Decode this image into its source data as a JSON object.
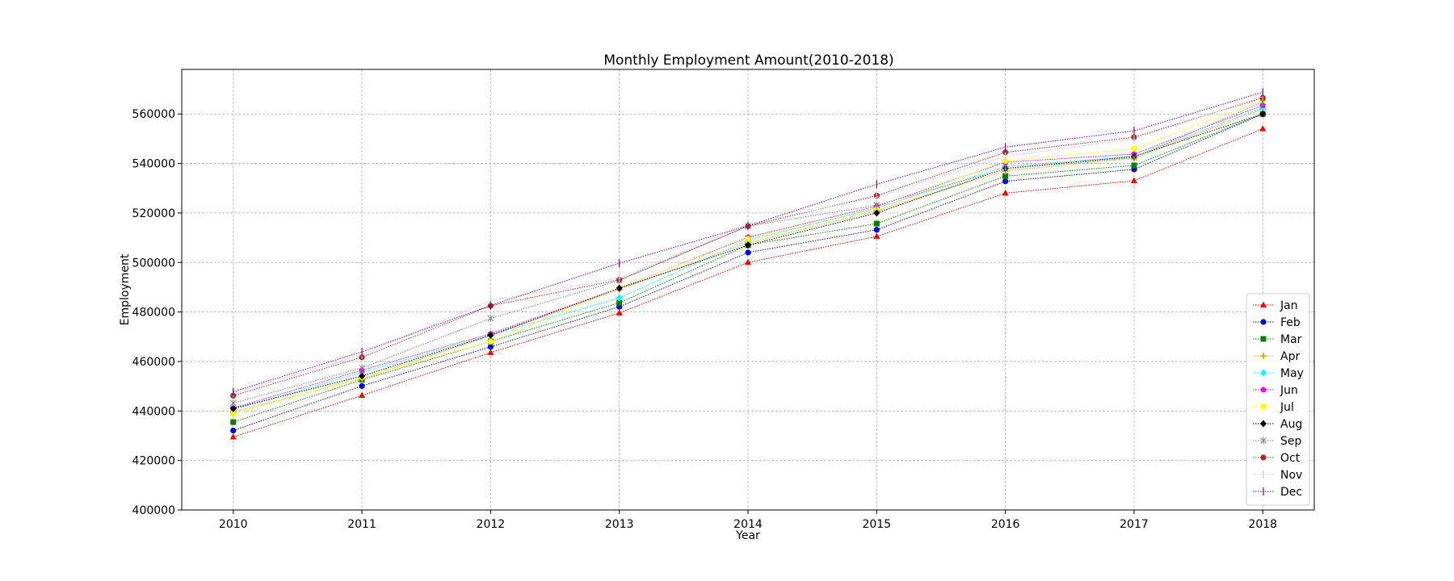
{
  "chart_data": {
    "type": "line",
    "title": "Monthly Employment Amount(2010-2018)",
    "xlabel": "Year",
    "ylabel": "Employment",
    "x": [
      2010,
      2011,
      2012,
      2013,
      2014,
      2015,
      2016,
      2017,
      2018
    ],
    "xlim": [
      2009.6,
      2018.4
    ],
    "ylim": [
      400000,
      578000
    ],
    "yticks": [
      400000,
      420000,
      440000,
      460000,
      480000,
      500000,
      520000,
      540000,
      560000
    ],
    "grid": true,
    "legend_position": "lower-right",
    "series": [
      {
        "name": "Jan",
        "color": "#ff0000",
        "marker": "triangle",
        "values": [
          429500,
          446300,
          463600,
          479600,
          500000,
          510500,
          528000,
          533000,
          554000
        ]
      },
      {
        "name": "Feb",
        "color": "#0000ff",
        "marker": "circle",
        "values": [
          432100,
          450100,
          465900,
          482100,
          504000,
          513200,
          532800,
          537600,
          560000
        ]
      },
      {
        "name": "Mar",
        "color": "#008000",
        "marker": "square",
        "values": [
          435500,
          452600,
          468100,
          483700,
          507000,
          515700,
          534900,
          539200,
          560000
        ]
      },
      {
        "name": "Apr",
        "color": "#ffa500",
        "marker": "plus",
        "values": [
          439600,
          453000,
          470400,
          489100,
          507900,
          520900,
          537000,
          542100,
          562000
        ]
      },
      {
        "name": "May",
        "color": "#00ffff",
        "marker": "diamond",
        "values": [
          440500,
          455500,
          470700,
          485700,
          509000,
          522000,
          538800,
          542900,
          562500
        ]
      },
      {
        "name": "Jun",
        "color": "#ff00ff",
        "marker": "pentagon",
        "values": [
          441200,
          456500,
          471200,
          489600,
          510200,
          522700,
          540500,
          543800,
          563500
        ]
      },
      {
        "name": "Jul",
        "color": "#ffff00",
        "marker": "circle",
        "values": [
          438800,
          453600,
          468000,
          489900,
          509600,
          521500,
          541000,
          546000,
          565500
        ]
      },
      {
        "name": "Aug",
        "color": "#000000",
        "marker": "diamond",
        "values": [
          441000,
          454100,
          470600,
          489600,
          507000,
          520000,
          538000,
          542800,
          560000
        ]
      },
      {
        "name": "Sep",
        "color": "#808080",
        "marker": "x",
        "values": [
          443200,
          457400,
          477400,
          492700,
          514700,
          523100,
          537800,
          542400,
          564800
        ]
      },
      {
        "name": "Oct",
        "color": "#a52a2a",
        "marker": "circle",
        "values": [
          446200,
          461700,
          482500,
          493000,
          514700,
          527000,
          544500,
          550600,
          566500
        ]
      },
      {
        "name": "Nov",
        "color": "#d8bfd8",
        "marker": "vline",
        "values": [
          447300,
          462700,
          484600,
          493700,
          515500,
          526400,
          542900,
          549900,
          567000
        ]
      },
      {
        "name": "Dec",
        "color": "#800080",
        "marker": "vline",
        "values": [
          447800,
          463900,
          482600,
          499700,
          514800,
          531600,
          546600,
          553200,
          568800
        ]
      }
    ]
  }
}
